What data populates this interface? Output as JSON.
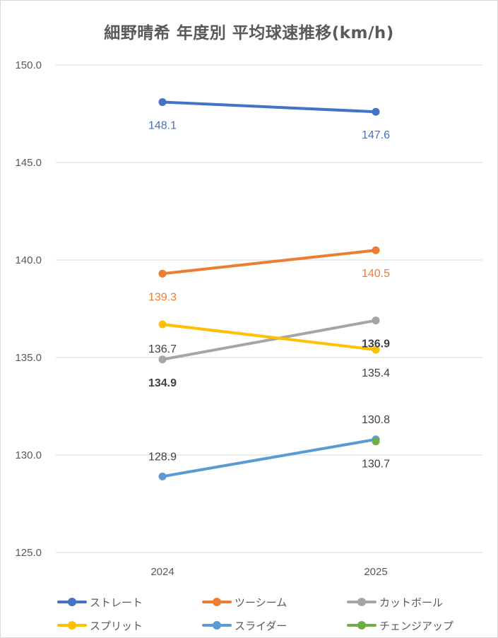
{
  "chart_data": {
    "type": "line",
    "title": "細野晴希 年度別 平均球速推移(km/h)",
    "xlabel": "",
    "ylabel": "",
    "categories": [
      "2024",
      "2025"
    ],
    "ylim": [
      125.0,
      150.0
    ],
    "yticks": [
      "125.0",
      "130.0",
      "135.0",
      "140.0",
      "145.0",
      "150.0"
    ],
    "grid": true,
    "legend_position": "bottom",
    "series": [
      {
        "name": "ストレート",
        "color": "#4472c4",
        "values": [
          148.1,
          147.6
        ],
        "labels": [
          "148.1",
          "147.6"
        ],
        "label_color": "#4472c4",
        "label_bold": false
      },
      {
        "name": "ツーシーム",
        "color": "#ed7d31",
        "values": [
          139.3,
          140.5
        ],
        "labels": [
          "139.3",
          "140.5"
        ],
        "label_color": "#ed7d31",
        "label_bold": false
      },
      {
        "name": "カットボール",
        "color": "#a5a5a5",
        "values": [
          134.9,
          136.9
        ],
        "labels": [
          "134.9",
          "136.9"
        ],
        "label_color": "#404040",
        "label_bold": true
      },
      {
        "name": "スプリット",
        "color": "#ffc000",
        "values": [
          136.7,
          135.4
        ],
        "labels": [
          "136.7",
          "135.4"
        ],
        "label_color": "#404040",
        "label_bold": false
      },
      {
        "name": "スライダー",
        "color": "#5b9bd5",
        "values": [
          128.9,
          130.8
        ],
        "labels": [
          "128.9",
          "130.8"
        ],
        "label_color": "#404040",
        "label_bold": false
      },
      {
        "name": "チェンジアップ",
        "color": "#70ad47",
        "values": [
          null,
          130.7
        ],
        "labels": [
          null,
          "130.7"
        ],
        "label_color": "#404040",
        "label_bold": false
      }
    ]
  }
}
